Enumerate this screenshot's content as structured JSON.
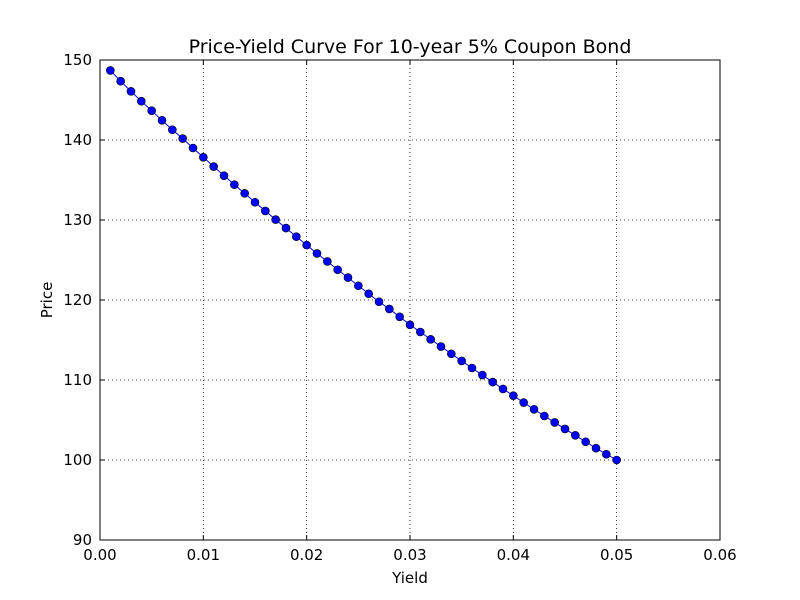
{
  "chart_data": {
    "type": "line",
    "title": "Price-Yield Curve For 10-year 5% Coupon Bond",
    "xlabel": "Yield",
    "ylabel": "Price",
    "xlim": [
      0.0,
      0.06
    ],
    "ylim": [
      90,
      150
    ],
    "xticks": [
      "0.00",
      "0.01",
      "0.02",
      "0.03",
      "0.04",
      "0.05",
      "0.06"
    ],
    "yticks": [
      "90",
      "100",
      "110",
      "120",
      "130",
      "140",
      "150"
    ],
    "grid": true,
    "line_color": "#0000ff",
    "marker": "circle",
    "series": [
      {
        "x": [
          0.001,
          0.002,
          0.003,
          0.004,
          0.005,
          0.006,
          0.007,
          0.008,
          0.009,
          0.01,
          0.011,
          0.012,
          0.013,
          0.014,
          0.015,
          0.016,
          0.017,
          0.018,
          0.019,
          0.02,
          0.021,
          0.022,
          0.023,
          0.024,
          0.025,
          0.026,
          0.027,
          0.028,
          0.029,
          0.03,
          0.031,
          0.032,
          0.033,
          0.034,
          0.035,
          0.036,
          0.037,
          0.038,
          0.039,
          0.04,
          0.041,
          0.042,
          0.043,
          0.044,
          0.045,
          0.046,
          0.047,
          0.048,
          0.049,
          0.05
        ],
        "y": [
          148.7,
          147.35,
          146.08,
          144.85,
          143.66,
          142.46,
          141.28,
          140.18,
          139.0,
          137.84,
          136.68,
          135.54,
          134.42,
          133.33,
          132.22,
          131.13,
          130.05,
          128.99,
          127.92,
          126.86,
          125.82,
          124.82,
          123.78,
          122.8,
          121.78,
          120.78,
          119.78,
          118.88,
          117.9,
          116.9,
          116.0,
          115.08,
          114.18,
          113.28,
          112.38,
          111.5,
          110.62,
          109.74,
          108.88,
          108.04,
          107.18,
          106.34,
          105.5,
          104.7,
          103.88,
          103.08,
          102.28,
          101.48,
          100.72,
          100.0
        ]
      }
    ]
  }
}
